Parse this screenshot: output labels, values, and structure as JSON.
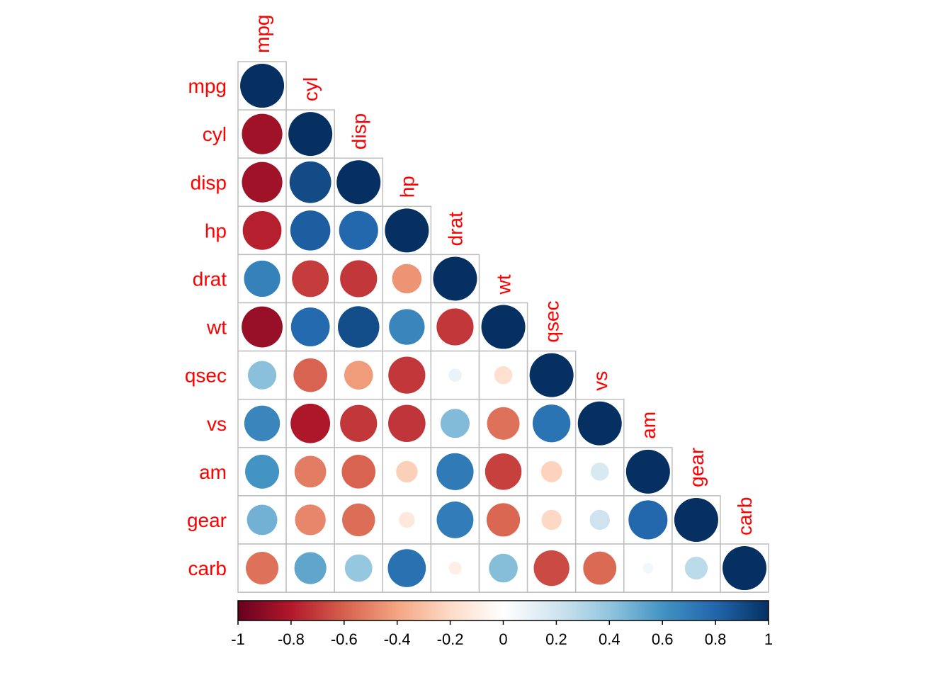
{
  "chart_data": {
    "type": "heatmap",
    "style": "circle correlation matrix, lower triangle with diagonal",
    "variables": [
      "mpg",
      "cyl",
      "disp",
      "hp",
      "drat",
      "wt",
      "qsec",
      "vs",
      "am",
      "gear",
      "carb"
    ],
    "matrix": [
      [
        1.0,
        -0.85,
        -0.85,
        -0.78,
        0.68,
        -0.87,
        0.42,
        0.66,
        0.6,
        0.48,
        -0.55
      ],
      [
        -0.85,
        1.0,
        0.9,
        0.83,
        -0.7,
        0.78,
        -0.59,
        -0.81,
        -0.52,
        -0.49,
        0.53
      ],
      [
        -0.85,
        0.9,
        1.0,
        0.79,
        -0.71,
        0.89,
        -0.43,
        -0.71,
        -0.59,
        -0.56,
        0.39
      ],
      [
        -0.78,
        0.83,
        0.79,
        1.0,
        -0.45,
        0.66,
        -0.71,
        -0.72,
        -0.24,
        -0.13,
        0.75
      ],
      [
        0.68,
        -0.7,
        -0.71,
        -0.45,
        1.0,
        -0.71,
        0.09,
        0.44,
        0.71,
        0.7,
        -0.09
      ],
      [
        -0.87,
        0.78,
        0.89,
        0.66,
        -0.71,
        1.0,
        -0.17,
        -0.55,
        -0.69,
        -0.58,
        0.43
      ],
      [
        0.42,
        -0.59,
        -0.43,
        -0.71,
        0.09,
        -0.17,
        1.0,
        0.74,
        -0.23,
        -0.21,
        -0.66
      ],
      [
        0.66,
        -0.81,
        -0.71,
        -0.72,
        0.44,
        -0.55,
        0.74,
        1.0,
        0.17,
        0.21,
        -0.57
      ],
      [
        0.6,
        -0.52,
        -0.59,
        -0.24,
        0.71,
        -0.69,
        -0.23,
        0.17,
        1.0,
        0.79,
        0.06
      ],
      [
        0.48,
        -0.49,
        -0.56,
        -0.13,
        0.7,
        -0.58,
        -0.21,
        0.21,
        0.79,
        1.0,
        0.27
      ],
      [
        -0.55,
        0.53,
        0.39,
        0.75,
        -0.09,
        0.43,
        -0.66,
        -0.57,
        0.06,
        0.27,
        1.0
      ]
    ],
    "colorbar": {
      "range": [
        -1,
        1
      ],
      "ticks": [
        "-1",
        "-0.8",
        "-0.6",
        "-0.4",
        "-0.2",
        "0",
        "0.2",
        "0.4",
        "0.6",
        "0.8",
        "1"
      ],
      "colors": [
        "#67001F",
        "#B2182B",
        "#D6604D",
        "#F4A582",
        "#FDDBC7",
        "#FFFFFF",
        "#D1E5F0",
        "#92C5DE",
        "#4393C3",
        "#2166AC",
        "#053061"
      ],
      "placement": "bottom"
    },
    "label_color": "#FF0000",
    "grid": true
  }
}
